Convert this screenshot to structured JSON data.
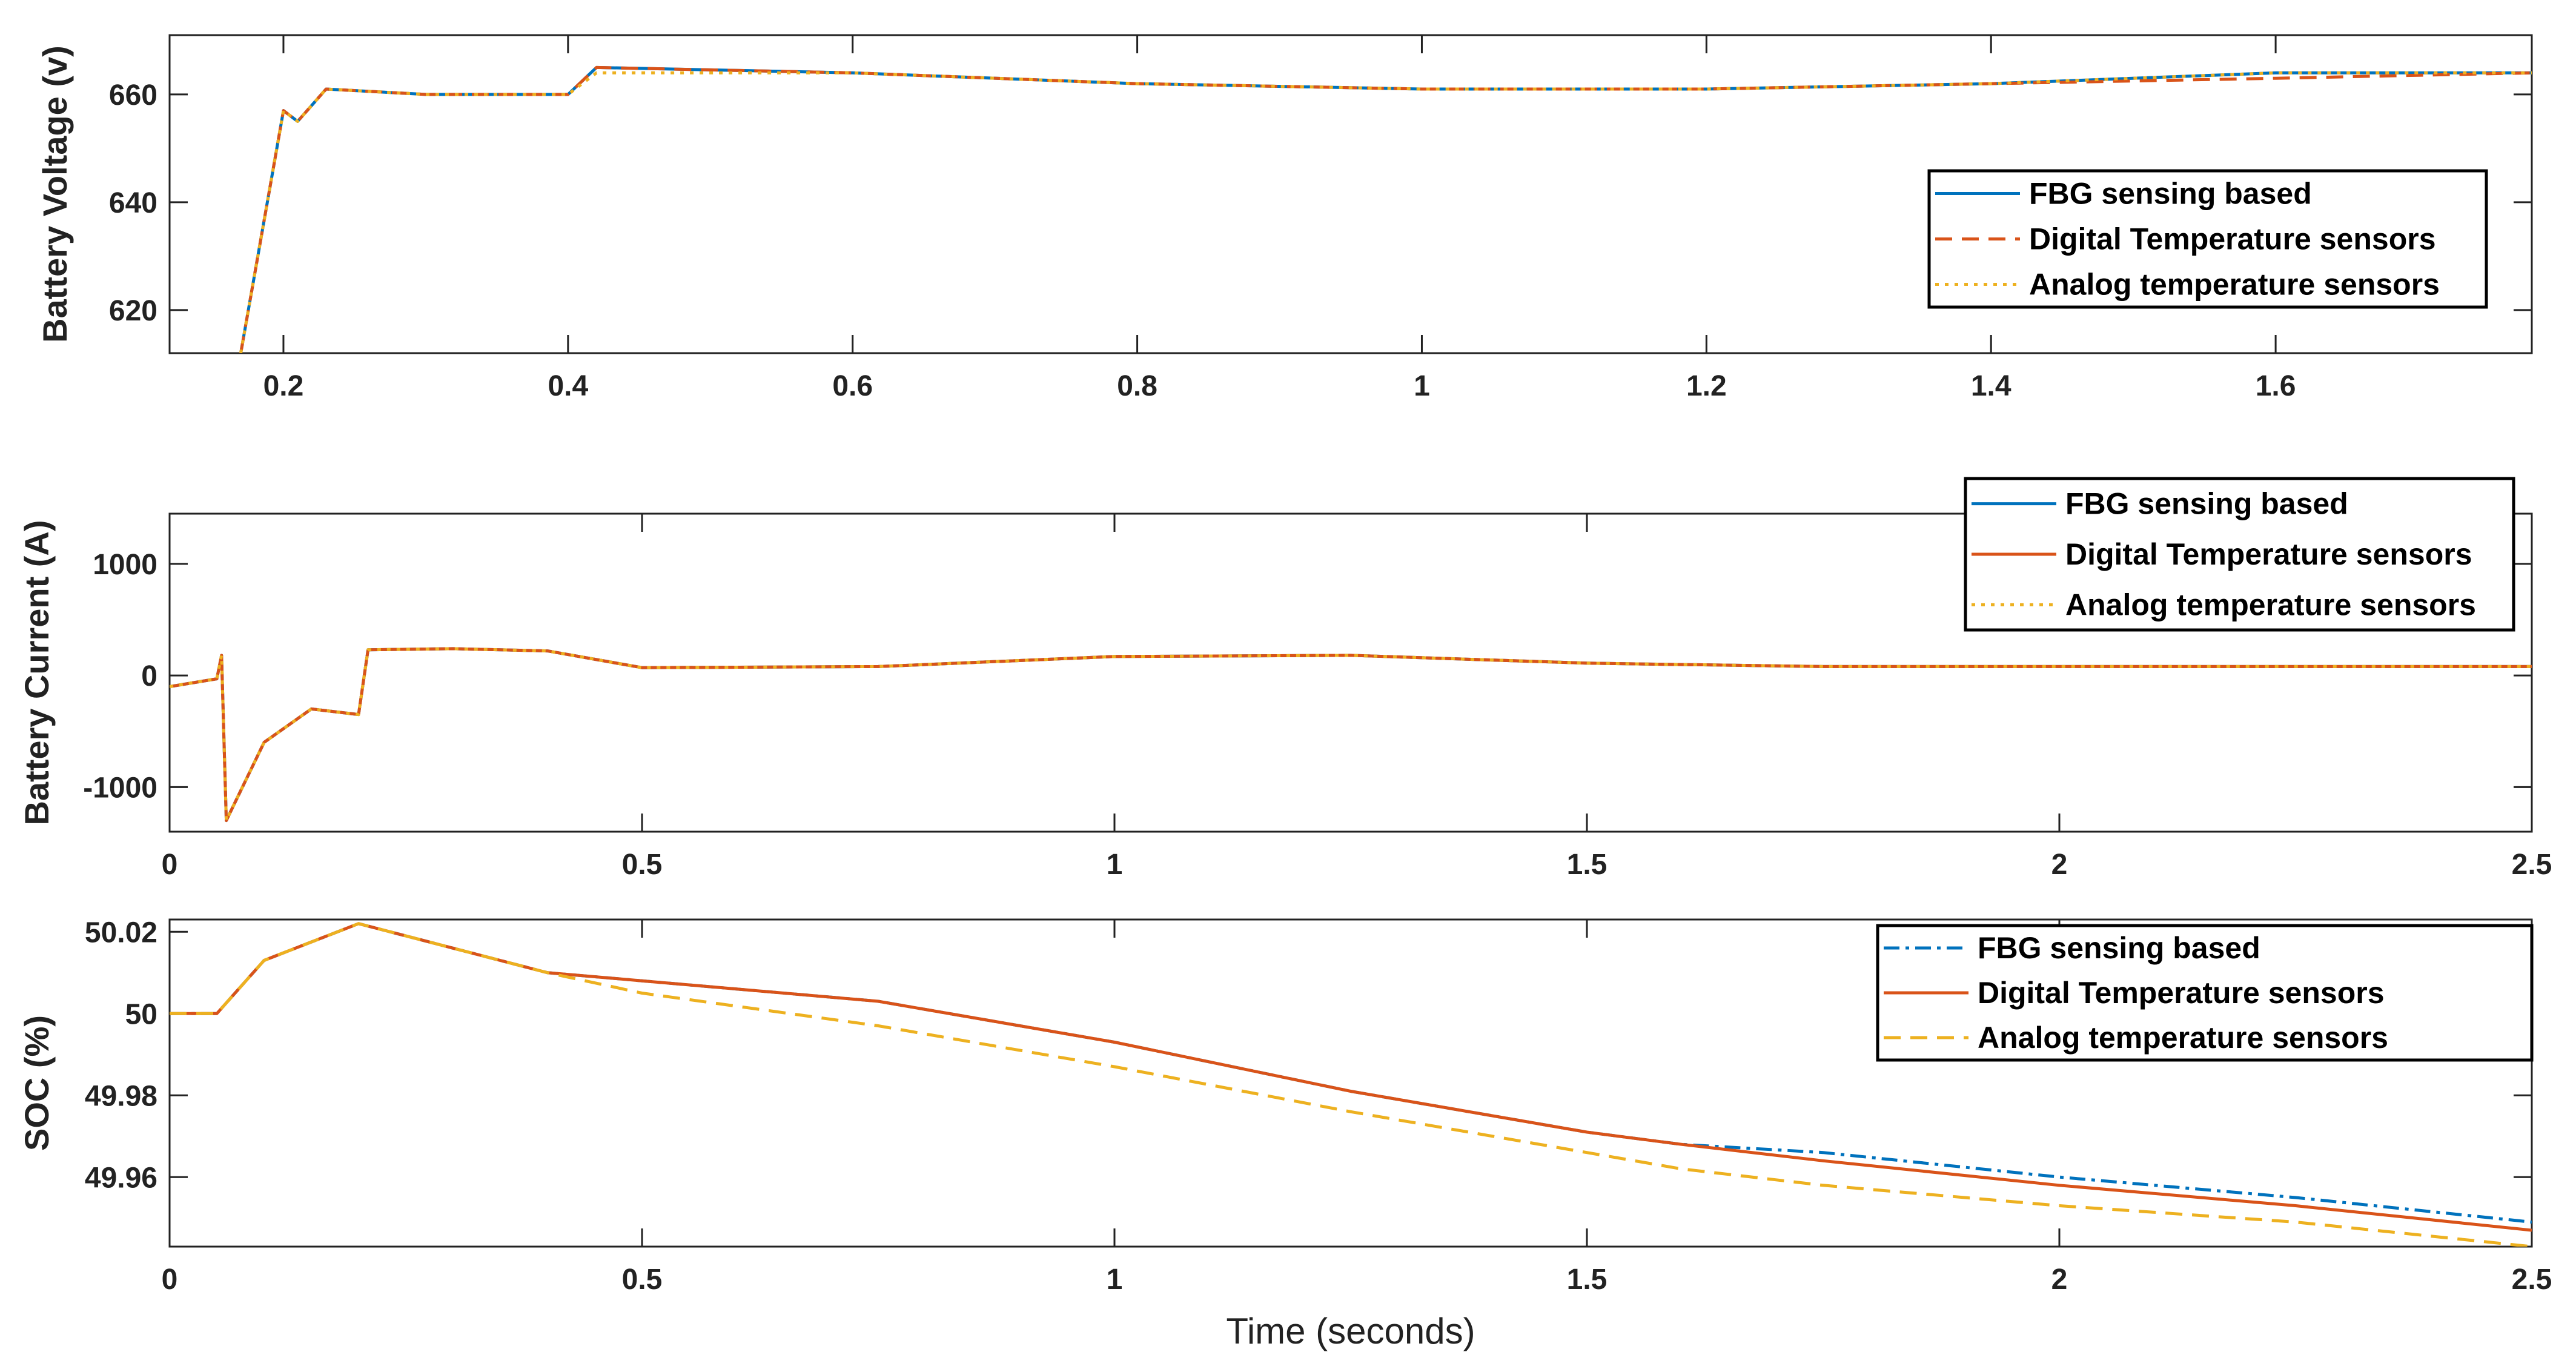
{
  "colors": {
    "fbg": "#0072BD",
    "digital": "#D95319",
    "analog": "#EDB120",
    "axis": "#222222",
    "grid": "#dddddd"
  },
  "chart_data": [
    {
      "type": "line",
      "ylabel": "Battery Voltage (v)",
      "xlabel": "",
      "xlim": [
        0.12,
        1.78
      ],
      "ylim": [
        612,
        671
      ],
      "xticks": [
        "0.2",
        "0.4",
        "0.6",
        "0.8",
        "1",
        "1.2",
        "1.4",
        "1.6"
      ],
      "yticks": [
        "620",
        "640",
        "660"
      ],
      "legend": [
        "FBG sensing based",
        "Digital Temperature sensors",
        "Analog temperature sensors"
      ],
      "legend_position": "center-right",
      "x": [
        0.17,
        0.2,
        0.21,
        0.23,
        0.3,
        0.4,
        0.42,
        0.6,
        0.8,
        1.0,
        1.2,
        1.4,
        1.6,
        1.78
      ],
      "series": [
        {
          "name": "FBG sensing based",
          "style": "solid",
          "values": [
            612,
            657,
            655,
            661,
            660,
            660,
            665,
            664,
            662,
            661,
            661,
            662,
            664,
            664
          ]
        },
        {
          "name": "Digital Temperature sensors",
          "style": "dashed",
          "values": [
            612,
            657,
            655,
            661,
            660,
            660,
            665,
            664,
            662,
            661,
            661,
            662,
            663,
            664
          ]
        },
        {
          "name": "Analog temperature sensors",
          "style": "dotted",
          "values": [
            612,
            657,
            655,
            661,
            660,
            660,
            664,
            664,
            662,
            661,
            661,
            662,
            664,
            664
          ]
        }
      ]
    },
    {
      "type": "line",
      "ylabel": "Battery Current (A)",
      "xlabel": "",
      "xlim": [
        0,
        2.5
      ],
      "ylim": [
        -1400,
        1450
      ],
      "xticks": [
        "0",
        "0.5",
        "1",
        "1.5",
        "2",
        "2.5"
      ],
      "yticks": [
        "-1000",
        "0",
        "1000"
      ],
      "legend": [
        "FBG sensing based",
        "Digital Temperature sensors",
        "Analog temperature sensors"
      ],
      "legend_position": "top-right",
      "x": [
        0,
        0.05,
        0.055,
        0.06,
        0.1,
        0.15,
        0.2,
        0.21,
        0.3,
        0.4,
        0.5,
        0.75,
        1.0,
        1.25,
        1.5,
        1.75,
        2.0,
        2.25,
        2.5
      ],
      "series": [
        {
          "name": "FBG sensing based",
          "style": "solid",
          "values": [
            -100,
            -30,
            180,
            -1300,
            -600,
            -300,
            -350,
            230,
            240,
            220,
            70,
            80,
            170,
            180,
            110,
            80,
            80,
            80,
            80
          ]
        },
        {
          "name": "Digital Temperature sensors",
          "style": "solid",
          "values": [
            -100,
            -30,
            180,
            -1300,
            -600,
            -300,
            -350,
            230,
            240,
            220,
            70,
            80,
            170,
            180,
            110,
            80,
            80,
            80,
            80
          ]
        },
        {
          "name": "Analog temperature sensors",
          "style": "dotted",
          "values": [
            -100,
            -30,
            180,
            -1300,
            -600,
            -300,
            -350,
            230,
            240,
            220,
            70,
            80,
            170,
            180,
            110,
            80,
            80,
            80,
            80
          ]
        }
      ]
    },
    {
      "type": "line",
      "ylabel": "SOC (%)",
      "xlabel": "Time (seconds)",
      "xlim": [
        0,
        2.5
      ],
      "ylim": [
        49.943,
        50.023
      ],
      "xticks": [
        "0",
        "0.5",
        "1",
        "1.5",
        "2",
        "2.5"
      ],
      "yticks": [
        "49.96",
        "49.98",
        "50",
        "50.02"
      ],
      "legend": [
        "FBG sensing based",
        "Digital Temperature sensors",
        "Analog temperature sensors"
      ],
      "legend_position": "top-right",
      "x": [
        0,
        0.05,
        0.1,
        0.2,
        0.3,
        0.4,
        0.5,
        0.75,
        1.0,
        1.25,
        1.5,
        1.6,
        1.75,
        2.0,
        2.25,
        2.5
      ],
      "series": [
        {
          "name": "FBG sensing based",
          "style": "dashdot",
          "values": [
            50.0,
            50.0,
            50.013,
            50.022,
            50.016,
            50.01,
            50.008,
            50.003,
            49.993,
            49.981,
            49.971,
            49.968,
            49.966,
            49.96,
            49.955,
            49.949
          ]
        },
        {
          "name": "Digital Temperature sensors",
          "style": "solid",
          "values": [
            50.0,
            50.0,
            50.013,
            50.022,
            50.016,
            50.01,
            50.008,
            50.003,
            49.993,
            49.981,
            49.971,
            49.968,
            49.964,
            49.958,
            49.953,
            49.947
          ]
        },
        {
          "name": "Analog temperature sensors",
          "style": "dashed",
          "values": [
            50.0,
            50.0,
            50.013,
            50.022,
            50.016,
            50.01,
            50.005,
            49.997,
            49.987,
            49.976,
            49.966,
            49.962,
            49.958,
            49.953,
            49.949,
            49.943
          ]
        }
      ]
    }
  ]
}
